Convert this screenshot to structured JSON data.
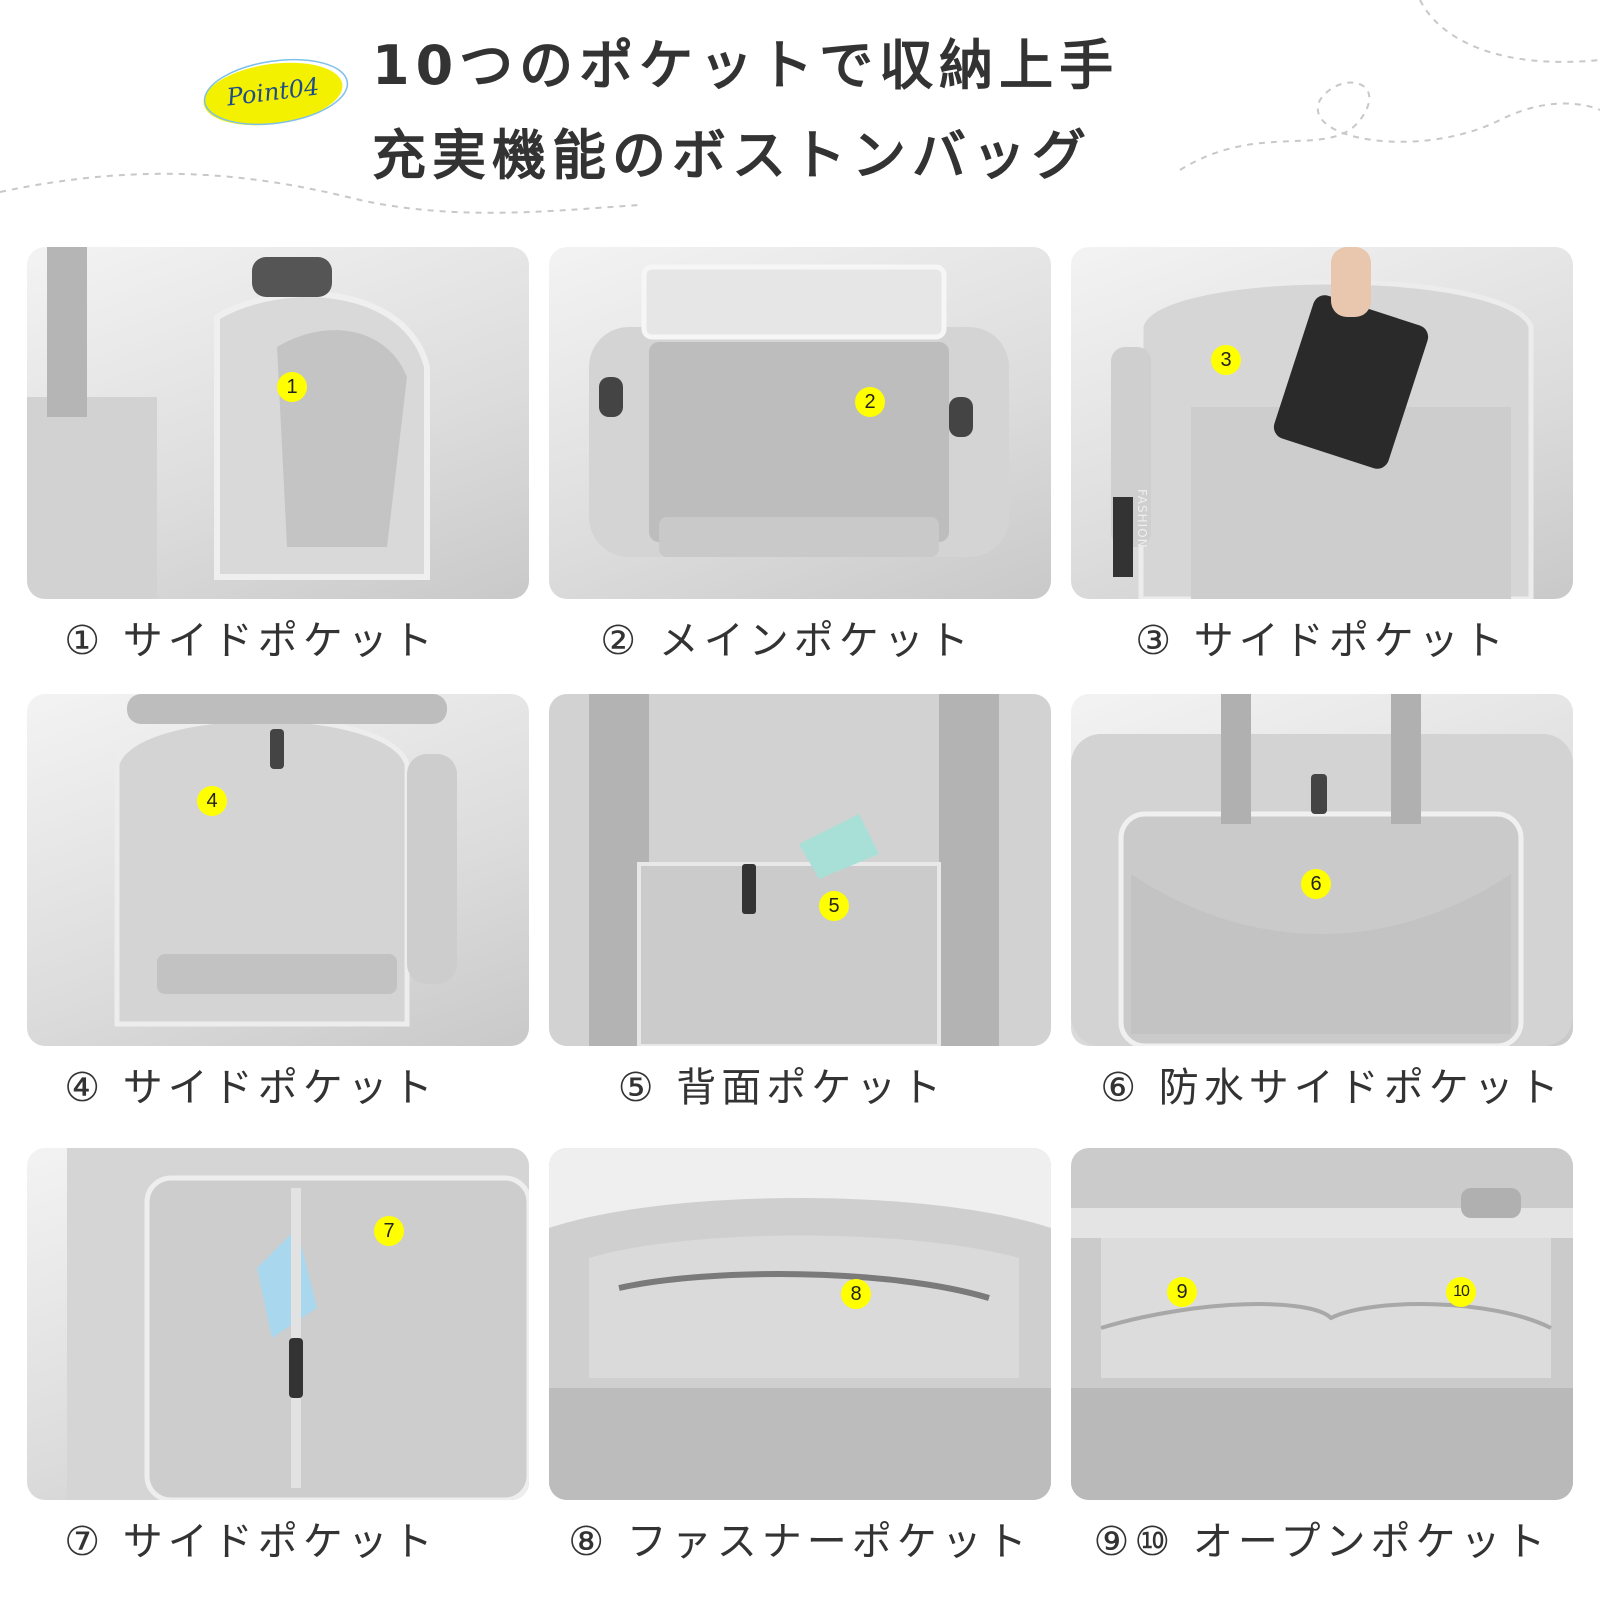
{
  "header": {
    "badge": "Point04",
    "title_line1": "10つのポケットで収納上手",
    "title_line2": "充実機能のボストンバッグ"
  },
  "panels": [
    {
      "number": "1",
      "caption": "① サイドポケット"
    },
    {
      "number": "2",
      "caption": "② メインポケット"
    },
    {
      "number": "3",
      "caption": "③ サイドポケット"
    },
    {
      "number": "4",
      "caption": "④ サイドポケット"
    },
    {
      "number": "5",
      "caption": "⑤ 背面ポケット"
    },
    {
      "number": "6",
      "caption": "⑥ 防水サイドポケット"
    },
    {
      "number": "7",
      "caption": "⑦ サイドポケット"
    },
    {
      "number": "8",
      "caption": "⑧ ファスナーポケット"
    },
    {
      "number": "9",
      "number_b": "10",
      "caption": "⑨⑩ オープンポケット"
    }
  ],
  "product_label": "FASHION",
  "colors": {
    "marker": "#ffff00",
    "text": "#333333",
    "bag": "#cfcfcf",
    "badge_text": "#1e4c8a"
  }
}
